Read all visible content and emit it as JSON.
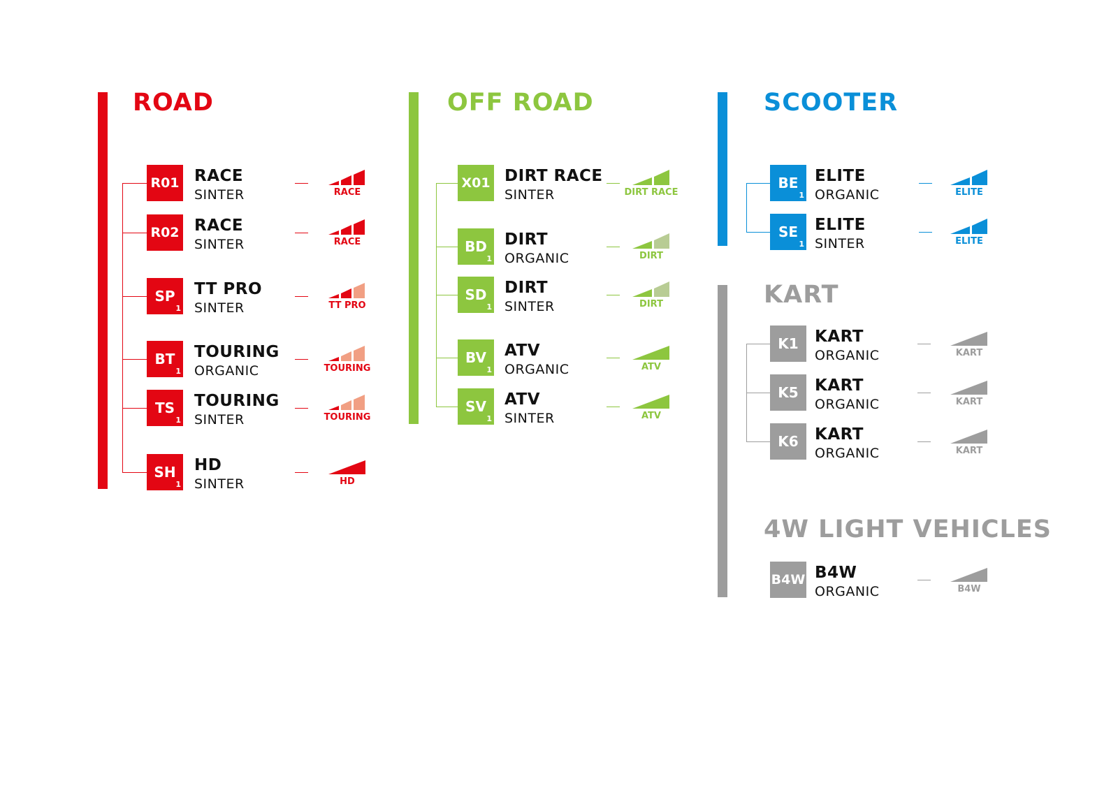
{
  "colors": {
    "road": "#e30613",
    "road_light": "#f19f83",
    "offroad": "#8dc63f",
    "offroad_light": "#b8cc94",
    "scooter": "#0a8fd8",
    "kart": "#9d9d9d"
  },
  "sections": [
    {
      "id": "road",
      "title": "ROAD",
      "color": "road",
      "light": "road_light",
      "items": [
        {
          "code": "R01",
          "sub": "",
          "name": "RACE",
          "type": "SINTER",
          "rating": "RACE",
          "bars": [
            1,
            1,
            1
          ]
        },
        {
          "code": "R02",
          "sub": "",
          "name": "RACE",
          "type": "SINTER",
          "rating": "RACE",
          "bars": [
            1,
            1,
            1
          ]
        },
        {
          "code": "SP",
          "sub": "1",
          "name": "TT PRO",
          "type": "SINTER",
          "rating": "TT PRO",
          "bars": [
            1,
            1,
            0
          ]
        },
        {
          "code": "BT",
          "sub": "1",
          "name": "TOURING",
          "type": "ORGANIC",
          "rating": "TOURING",
          "bars": [
            1,
            0,
            0
          ]
        },
        {
          "code": "TS",
          "sub": "1",
          "name": "TOURING",
          "type": "SINTER",
          "rating": "TOURING",
          "bars": [
            1,
            0,
            0
          ]
        },
        {
          "code": "SH",
          "sub": "1",
          "name": "HD",
          "type": "SINTER",
          "rating": "HD",
          "bars": [
            1
          ]
        }
      ]
    },
    {
      "id": "offroad",
      "title": "OFF ROAD",
      "color": "offroad",
      "light": "offroad_light",
      "items": [
        {
          "code": "X01",
          "sub": "",
          "name": "DIRT RACE",
          "type": "SINTER",
          "rating": "DIRT RACE",
          "bars": [
            1,
            1
          ]
        },
        {
          "code": "BD",
          "sub": "1",
          "name": "DIRT",
          "type": "ORGANIC",
          "rating": "DIRT",
          "bars": [
            1,
            0
          ]
        },
        {
          "code": "SD",
          "sub": "1",
          "name": "DIRT",
          "type": "SINTER",
          "rating": "DIRT",
          "bars": [
            1,
            0
          ]
        },
        {
          "code": "BV",
          "sub": "1",
          "name": "ATV",
          "type": "ORGANIC",
          "rating": "ATV",
          "bars": [
            1
          ]
        },
        {
          "code": "SV",
          "sub": "1",
          "name": "ATV",
          "type": "SINTER",
          "rating": "ATV",
          "bars": [
            1
          ]
        }
      ]
    },
    {
      "id": "scooter",
      "title": "SCOOTER",
      "color": "scooter",
      "light": "scooter",
      "items": [
        {
          "code": "BE",
          "sub": "1",
          "name": "ELITE",
          "type": "ORGANIC",
          "rating": "ELITE",
          "bars": [
            1,
            1
          ]
        },
        {
          "code": "SE",
          "sub": "1",
          "name": "ELITE",
          "type": "SINTER",
          "rating": "ELITE",
          "bars": [
            1,
            1
          ]
        }
      ]
    },
    {
      "id": "kart",
      "title": "KART",
      "color": "kart",
      "light": "kart",
      "items": [
        {
          "code": "K1",
          "sub": "",
          "name": "KART",
          "type": "ORGANIC",
          "rating": "KART",
          "bars": [
            1
          ]
        },
        {
          "code": "K5",
          "sub": "",
          "name": "KART",
          "type": "ORGANIC",
          "rating": "KART",
          "bars": [
            1
          ]
        },
        {
          "code": "K6",
          "sub": "",
          "name": "KART",
          "type": "ORGANIC",
          "rating": "KART",
          "bars": [
            1
          ]
        }
      ]
    },
    {
      "id": "4w",
      "title": "4W LIGHT VEHICLES",
      "color": "kart",
      "light": "kart",
      "items": [
        {
          "code": "B4W",
          "sub": "",
          "name": "B4W",
          "type": "ORGANIC",
          "rating": "B4W",
          "bars": [
            1
          ]
        }
      ]
    }
  ]
}
